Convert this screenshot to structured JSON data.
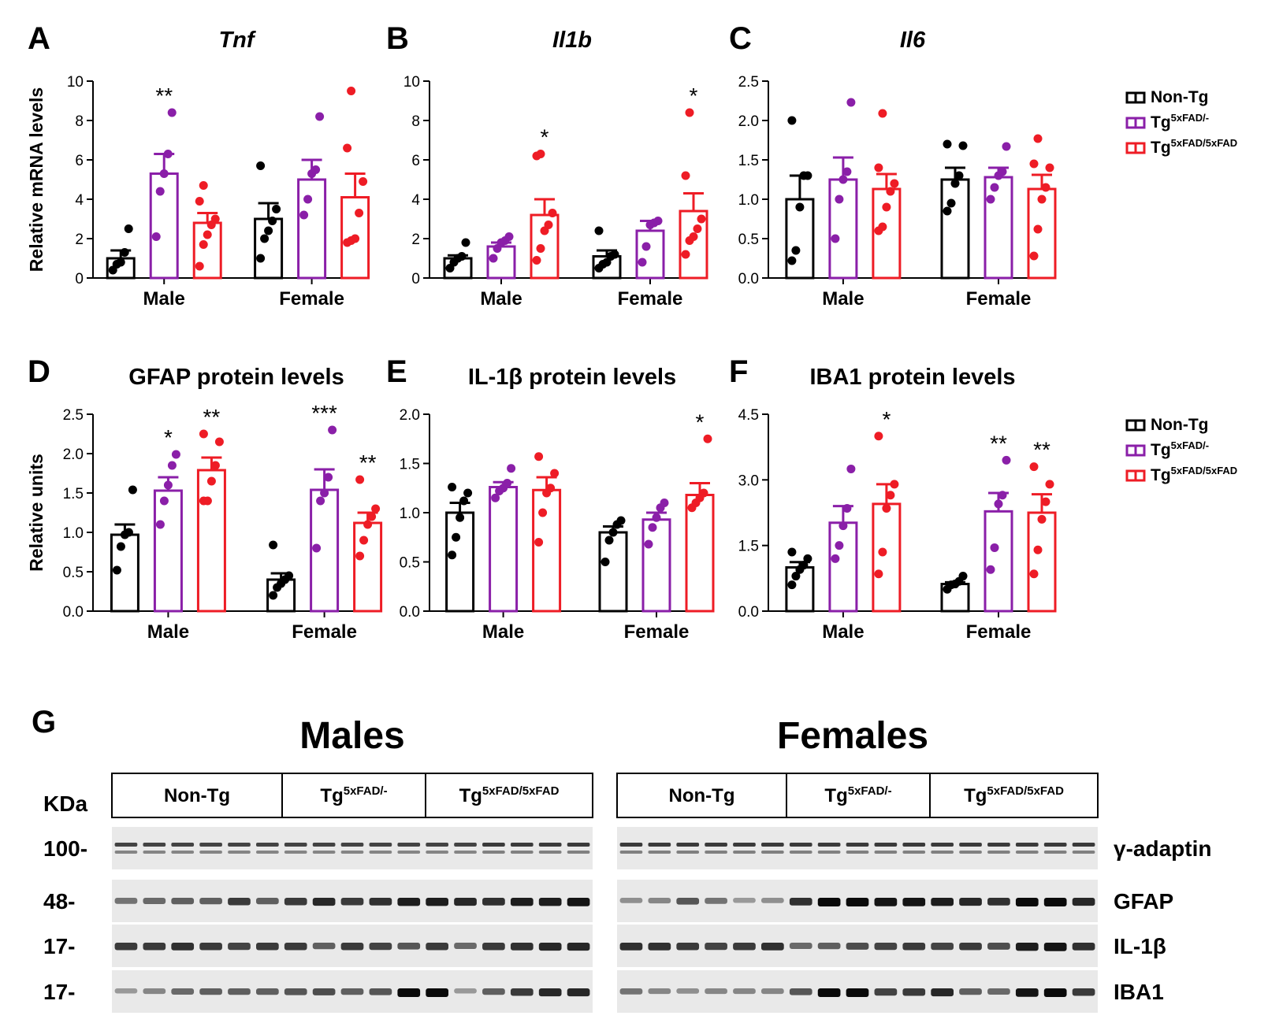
{
  "legend": {
    "entries": [
      {
        "label": "Non-Tg",
        "color": "#000000",
        "base": "Non-Tg",
        "sup": ""
      },
      {
        "label": "Tg5xFAD/-",
        "color": "#8A1FA8",
        "base": "Tg",
        "sup": "5xFAD/-"
      },
      {
        "label": "Tg5xFAD/5xFAD",
        "color": "#EE1C25",
        "base": "Tg",
        "sup": "5xFAD/5xFAD"
      }
    ]
  },
  "chart_data": [
    {
      "panel": "A",
      "type": "bar",
      "title": "Tnf",
      "title_italic": true,
      "ylabel": "Relative mRNA levels",
      "ylim": [
        0,
        10
      ],
      "yticks": [
        "0",
        "2",
        "4",
        "6",
        "8",
        "10"
      ],
      "ytick_values": [
        0,
        2,
        4,
        6,
        8,
        10
      ],
      "categories": [
        "Male",
        "Female"
      ],
      "series": [
        {
          "name": "Non-Tg",
          "means": [
            1.0,
            3.0
          ],
          "sem": [
            0.4,
            0.8
          ],
          "points": [
            [
              0.4,
              0.7,
              0.8,
              1.3,
              2.5
            ],
            [
              1.0,
              2.0,
              2.4,
              2.9,
              3.5,
              5.7
            ]
          ],
          "stars": [
            "",
            ""
          ]
        },
        {
          "name": "Tg5xFAD/-",
          "means": [
            5.3,
            5.0
          ],
          "sem": [
            1.0,
            1.0
          ],
          "points": [
            [
              2.1,
              4.4,
              5.3,
              6.3,
              8.4
            ],
            [
              3.2,
              4.0,
              5.3,
              5.5,
              8.2
            ]
          ],
          "stars": [
            "**",
            ""
          ]
        },
        {
          "name": "Tg5xFAD/5xFAD",
          "means": [
            2.8,
            4.1
          ],
          "sem": [
            0.5,
            1.2
          ],
          "points": [
            [
              0.6,
              1.7,
              2.2,
              2.7,
              3.0,
              3.9,
              4.7
            ],
            [
              1.8,
              1.9,
              2.0,
              3.3,
              4.9,
              6.6,
              9.5
            ]
          ],
          "stars": [
            "",
            ""
          ]
        }
      ]
    },
    {
      "panel": "B",
      "type": "bar",
      "title": "Il1b",
      "title_italic": true,
      "ylabel": "",
      "ylim": [
        0,
        10
      ],
      "yticks": [
        "0",
        "2",
        "4",
        "6",
        "8",
        "10"
      ],
      "ytick_values": [
        0,
        2,
        4,
        6,
        8,
        10
      ],
      "categories": [
        "Male",
        "Female"
      ],
      "series": [
        {
          "name": "Non-Tg",
          "means": [
            1.0,
            1.1
          ],
          "sem": [
            0.15,
            0.3
          ],
          "points": [
            [
              0.5,
              0.8,
              1.0,
              1.1,
              1.8
            ],
            [
              0.5,
              0.7,
              0.8,
              1.1,
              1.2,
              2.4
            ]
          ],
          "stars": [
            "",
            ""
          ]
        },
        {
          "name": "Tg5xFAD/-",
          "means": [
            1.6,
            2.4
          ],
          "sem": [
            0.2,
            0.5
          ],
          "points": [
            [
              1.0,
              1.5,
              1.8,
              1.9,
              2.1
            ],
            [
              0.8,
              1.6,
              2.7,
              2.8,
              2.9
            ]
          ],
          "stars": [
            "",
            ""
          ]
        },
        {
          "name": "Tg5xFAD/5xFAD",
          "means": [
            3.2,
            3.4
          ],
          "sem": [
            0.8,
            0.9
          ],
          "points": [
            [
              0.9,
              1.5,
              2.4,
              2.7,
              3.3,
              6.2,
              6.3
            ],
            [
              1.2,
              1.9,
              2.1,
              2.5,
              3.0,
              5.2,
              8.4
            ]
          ],
          "stars": [
            "*",
            "*"
          ]
        }
      ]
    },
    {
      "panel": "C",
      "type": "bar",
      "title": "Il6",
      "title_italic": true,
      "ylabel": "",
      "ylim": [
        0,
        2.5
      ],
      "yticks": [
        "0.0",
        "0.5",
        "1.0",
        "1.5",
        "2.0",
        "2.5"
      ],
      "ytick_values": [
        0,
        0.5,
        1.0,
        1.5,
        2.0,
        2.5
      ],
      "categories": [
        "Male",
        "Female"
      ],
      "series": [
        {
          "name": "Non-Tg",
          "means": [
            1.0,
            1.25
          ],
          "sem": [
            0.3,
            0.15
          ],
          "points": [
            [
              0.22,
              0.35,
              0.9,
              1.3,
              1.3,
              2.0
            ],
            [
              0.85,
              0.95,
              1.2,
              1.3,
              1.68,
              1.7
            ]
          ],
          "stars": [
            "",
            ""
          ]
        },
        {
          "name": "Tg5xFAD/-",
          "means": [
            1.25,
            1.28
          ],
          "sem": [
            0.28,
            0.12
          ],
          "points": [
            [
              0.5,
              1.0,
              1.25,
              1.35,
              2.23
            ],
            [
              1.0,
              1.15,
              1.3,
              1.35,
              1.67
            ]
          ],
          "stars": [
            "",
            ""
          ]
        },
        {
          "name": "Tg5xFAD/5xFAD",
          "means": [
            1.13,
            1.13
          ],
          "sem": [
            0.19,
            0.18
          ],
          "points": [
            [
              0.6,
              0.65,
              0.9,
              1.1,
              1.2,
              1.4,
              2.09
            ],
            [
              0.28,
              0.62,
              1.0,
              1.15,
              1.4,
              1.45,
              1.77
            ]
          ],
          "stars": [
            "",
            ""
          ]
        }
      ]
    },
    {
      "panel": "D",
      "type": "bar",
      "title": "GFAP protein levels",
      "title_italic": false,
      "ylabel": "Relative units",
      "ylim": [
        0,
        2.5
      ],
      "yticks": [
        "0.0",
        "0.5",
        "1.0",
        "1.5",
        "2.0",
        "2.5"
      ],
      "ytick_values": [
        0,
        0.5,
        1.0,
        1.5,
        2.0,
        2.5
      ],
      "categories": [
        "Male",
        "Female"
      ],
      "series": [
        {
          "name": "Non-Tg",
          "means": [
            0.97,
            0.4
          ],
          "sem": [
            0.13,
            0.08
          ],
          "points": [
            [
              0.52,
              0.82,
              0.97,
              1.0,
              1.54
            ],
            [
              0.2,
              0.3,
              0.35,
              0.4,
              0.45,
              0.84
            ]
          ],
          "stars": [
            "",
            ""
          ]
        },
        {
          "name": "Tg5xFAD/-",
          "means": [
            1.53,
            1.54
          ],
          "sem": [
            0.17,
            0.26
          ],
          "points": [
            [
              1.1,
              1.4,
              1.6,
              1.85,
              1.99
            ],
            [
              0.8,
              1.4,
              1.5,
              1.7,
              2.3
            ]
          ],
          "stars": [
            "*",
            "***"
          ]
        },
        {
          "name": "Tg5xFAD/5xFAD",
          "means": [
            1.79,
            1.12
          ],
          "sem": [
            0.16,
            0.13
          ],
          "points": [
            [
              1.4,
              1.4,
              1.65,
              1.85,
              2.15,
              2.25
            ],
            [
              0.7,
              0.9,
              1.1,
              1.2,
              1.3,
              1.67
            ]
          ],
          "stars": [
            "**",
            "**"
          ]
        }
      ]
    },
    {
      "panel": "E",
      "type": "bar",
      "title": "IL-1β protein levels",
      "title_italic": false,
      "ylabel": "",
      "ylim": [
        0,
        2.0
      ],
      "yticks": [
        "0.0",
        "0.5",
        "1.0",
        "1.5",
        "2.0"
      ],
      "ytick_values": [
        0,
        0.5,
        1.0,
        1.5,
        2.0
      ],
      "categories": [
        "Male",
        "Female"
      ],
      "series": [
        {
          "name": "Non-Tg",
          "means": [
            1.0,
            0.8
          ],
          "sem": [
            0.1,
            0.06
          ],
          "points": [
            [
              0.57,
              0.75,
              0.95,
              1.12,
              1.2,
              1.26
            ],
            [
              0.5,
              0.72,
              0.8,
              0.88,
              0.92
            ]
          ],
          "stars": [
            "",
            ""
          ]
        },
        {
          "name": "Tg5xFAD/-",
          "means": [
            1.26,
            0.93
          ],
          "sem": [
            0.05,
            0.07
          ],
          "points": [
            [
              1.15,
              1.22,
              1.25,
              1.3,
              1.45
            ],
            [
              0.68,
              0.85,
              0.95,
              1.05,
              1.1
            ]
          ],
          "stars": [
            "",
            ""
          ]
        },
        {
          "name": "Tg5xFAD/5xFAD",
          "means": [
            1.23,
            1.18
          ],
          "sem": [
            0.13,
            0.12
          ],
          "points": [
            [
              0.7,
              1.0,
              1.2,
              1.25,
              1.4,
              1.57
            ],
            [
              1.05,
              1.1,
              1.15,
              1.2,
              1.75
            ]
          ],
          "stars": [
            "",
            "*"
          ]
        }
      ]
    },
    {
      "panel": "F",
      "type": "bar",
      "title": "IBA1 protein levels",
      "title_italic": false,
      "ylabel": "",
      "ylim": [
        0,
        4.5
      ],
      "yticks": [
        "0.0",
        "1.5",
        "3.0",
        "4.5"
      ],
      "ytick_values": [
        0,
        1.5,
        3.0,
        4.5
      ],
      "categories": [
        "Male",
        "Female"
      ],
      "series": [
        {
          "name": "Non-Tg",
          "means": [
            1.0,
            0.62
          ],
          "sem": [
            0.12,
            0.04
          ],
          "points": [
            [
              0.6,
              0.8,
              0.95,
              1.05,
              1.2,
              1.35
            ],
            [
              0.5,
              0.6,
              0.62,
              0.68,
              0.8
            ]
          ],
          "stars": [
            "",
            ""
          ]
        },
        {
          "name": "Tg5xFAD/-",
          "means": [
            2.02,
            2.28
          ],
          "sem": [
            0.38,
            0.42
          ],
          "points": [
            [
              1.2,
              1.5,
              1.95,
              2.35,
              3.25
            ],
            [
              0.95,
              1.45,
              2.45,
              2.65,
              3.45
            ]
          ],
          "stars": [
            "",
            "**"
          ]
        },
        {
          "name": "Tg5xFAD/5xFAD",
          "means": [
            2.45,
            2.25
          ],
          "sem": [
            0.45,
            0.42
          ],
          "points": [
            [
              0.85,
              1.35,
              2.35,
              2.65,
              2.9,
              4.0
            ],
            [
              0.85,
              1.4,
              2.1,
              2.5,
              2.9,
              3.3
            ]
          ],
          "stars": [
            "*",
            "**"
          ]
        }
      ]
    }
  ],
  "western": {
    "label": "G",
    "kda_label": "KDa",
    "groups": [
      {
        "title": "Males",
        "header": [
          "Non-Tg",
          "Tg5xFAD/-",
          "Tg5xFAD/5xFAD"
        ]
      },
      {
        "title": "Females",
        "header": [
          "Non-Tg",
          "Tg5xFAD/-",
          "Tg5xFAD/5xFAD"
        ]
      }
    ],
    "header_parts": [
      {
        "base": "Non-Tg",
        "sup": ""
      },
      {
        "base": "Tg",
        "sup": "5xFAD/-"
      },
      {
        "base": "Tg",
        "sup": "5xFAD/5xFAD"
      }
    ],
    "blots": [
      {
        "kda": "100-",
        "protein": "γ-adaptin",
        "males": [
          0.7,
          0.7,
          0.7,
          0.7,
          0.7,
          0.7,
          0.7,
          0.7,
          0.7,
          0.7,
          0.7,
          0.7,
          0.7,
          0.75,
          0.75,
          0.75,
          0.75
        ],
        "females": [
          0.75,
          0.75,
          0.75,
          0.75,
          0.75,
          0.75,
          0.75,
          0.75,
          0.75,
          0.75,
          0.75,
          0.75,
          0.75,
          0.75,
          0.75,
          0.75,
          0.75
        ]
      },
      {
        "kda": "48-",
        "protein": "GFAP",
        "males": [
          0.45,
          0.5,
          0.55,
          0.55,
          0.75,
          0.55,
          0.75,
          0.85,
          0.75,
          0.8,
          0.9,
          0.9,
          0.85,
          0.8,
          0.9,
          0.9,
          0.95
        ],
        "females": [
          0.3,
          0.35,
          0.6,
          0.45,
          0.25,
          0.3,
          0.8,
          1.0,
          1.0,
          0.95,
          0.95,
          0.9,
          0.85,
          0.8,
          1.0,
          1.0,
          0.85
        ]
      },
      {
        "kda": "17-",
        "protein": "IL-1β",
        "males": [
          0.75,
          0.75,
          0.8,
          0.75,
          0.7,
          0.75,
          0.75,
          0.55,
          0.75,
          0.7,
          0.6,
          0.75,
          0.5,
          0.75,
          0.8,
          0.85,
          0.85
        ],
        "females": [
          0.8,
          0.8,
          0.75,
          0.7,
          0.75,
          0.8,
          0.5,
          0.55,
          0.65,
          0.7,
          0.75,
          0.7,
          0.75,
          0.65,
          0.9,
          0.95,
          0.8
        ]
      },
      {
        "kda": "17-",
        "protein": "IBA1",
        "males": [
          0.25,
          0.35,
          0.5,
          0.55,
          0.55,
          0.55,
          0.6,
          0.65,
          0.55,
          0.6,
          1.0,
          1.0,
          0.25,
          0.55,
          0.75,
          0.85,
          0.85
        ],
        "females": [
          0.45,
          0.35,
          0.3,
          0.35,
          0.35,
          0.35,
          0.6,
          1.0,
          1.0,
          0.7,
          0.75,
          0.85,
          0.55,
          0.5,
          0.95,
          1.0,
          0.75
        ]
      }
    ]
  }
}
